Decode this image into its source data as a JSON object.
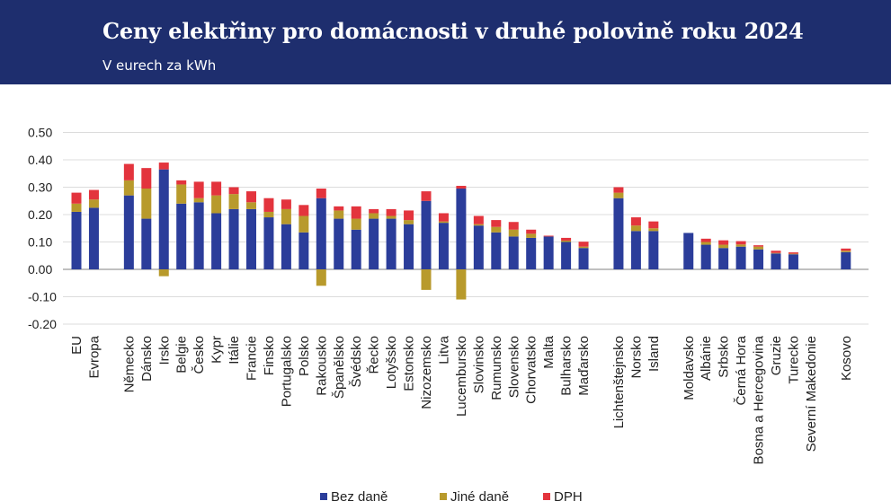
{
  "header": {
    "title": "Ceny elektřiny pro domácnosti v druhé polovině roku 2024",
    "subtitle": "V eurech za kWh"
  },
  "colors": {
    "header_bg": "#1e2e6e",
    "bez_dane": "#2b3d9a",
    "jine_dane": "#b89a2c",
    "dph": "#e3343d"
  },
  "chart_data": {
    "type": "bar",
    "stacked": true,
    "ylim": [
      -0.2,
      0.5
    ],
    "yticks": [
      0.5,
      0.4,
      0.3,
      0.2,
      0.1,
      0.0,
      -0.1,
      -0.2
    ],
    "ytick_labels": [
      "0.50",
      "0.40",
      "0.30",
      "0.20",
      "0.10",
      "0.00",
      "-0.10",
      "-0.20"
    ],
    "grid": true,
    "legend_position": "bottom",
    "categories": [
      "EU",
      "Evropa",
      "",
      "Německo",
      "Dánsko",
      "Irsko",
      "Belgie",
      "Česko",
      "Kypr",
      "Itálie",
      "Francie",
      "Finsko",
      "Portugalsko",
      "Polsko",
      "Rakousko",
      "Španělsko",
      "Švédsko",
      "Řecko",
      "Lotyšsko",
      "Estonsko",
      "Nizozemsko",
      "Litva",
      "Lucembursko",
      "Slovinsko",
      "Rumunsko",
      "Slovensko",
      "Chorvatsko",
      "Malta",
      "Bulharsko",
      "Maďarsko",
      "",
      "Lichtenštejnsko",
      "Norsko",
      "Island",
      "",
      "Moldavsko",
      "Albánie",
      "Srbsko",
      "Černá Hora",
      "Bosna a Hercegovina",
      "Gruzie",
      "Turecko",
      "Severní Makedonie",
      "",
      "Kosovo"
    ],
    "series": [
      {
        "name": "Bez daně",
        "values": [
          0.21,
          0.225,
          null,
          0.27,
          0.185,
          0.365,
          0.24,
          0.245,
          0.205,
          0.22,
          0.22,
          0.19,
          0.165,
          0.135,
          0.26,
          0.185,
          0.145,
          0.185,
          0.185,
          0.165,
          0.25,
          0.17,
          0.295,
          0.16,
          0.135,
          0.12,
          0.115,
          0.12,
          0.1,
          0.078,
          null,
          0.26,
          0.14,
          0.14,
          null,
          0.133,
          0.09,
          0.078,
          0.083,
          0.073,
          0.058,
          0.055,
          0.0,
          null,
          0.063
        ]
      },
      {
        "name": "Jiné daně",
        "values": [
          0.03,
          0.03,
          null,
          0.055,
          0.11,
          -0.025,
          0.07,
          0.015,
          0.065,
          0.055,
          0.025,
          0.02,
          0.055,
          0.06,
          -0.06,
          0.03,
          0.04,
          0.02,
          0.01,
          0.015,
          -0.075,
          0.005,
          -0.11,
          0.005,
          0.02,
          0.025,
          0.015,
          0.0,
          0.005,
          0.005,
          null,
          0.02,
          0.02,
          0.01,
          null,
          0.0,
          0.01,
          0.012,
          0.008,
          0.01,
          0.002,
          0.002,
          0.0,
          null,
          0.005
        ]
      },
      {
        "name": "DPH",
        "values": [
          0.04,
          0.035,
          null,
          0.06,
          0.075,
          0.025,
          0.015,
          0.06,
          0.05,
          0.025,
          0.04,
          0.05,
          0.035,
          0.04,
          0.035,
          0.015,
          0.045,
          0.015,
          0.025,
          0.035,
          0.035,
          0.03,
          0.01,
          0.03,
          0.025,
          0.028,
          0.015,
          0.003,
          0.01,
          0.018,
          null,
          0.02,
          0.03,
          0.025,
          null,
          0.0,
          0.012,
          0.016,
          0.012,
          0.005,
          0.008,
          0.005,
          0.0,
          null,
          0.008
        ]
      }
    ]
  }
}
